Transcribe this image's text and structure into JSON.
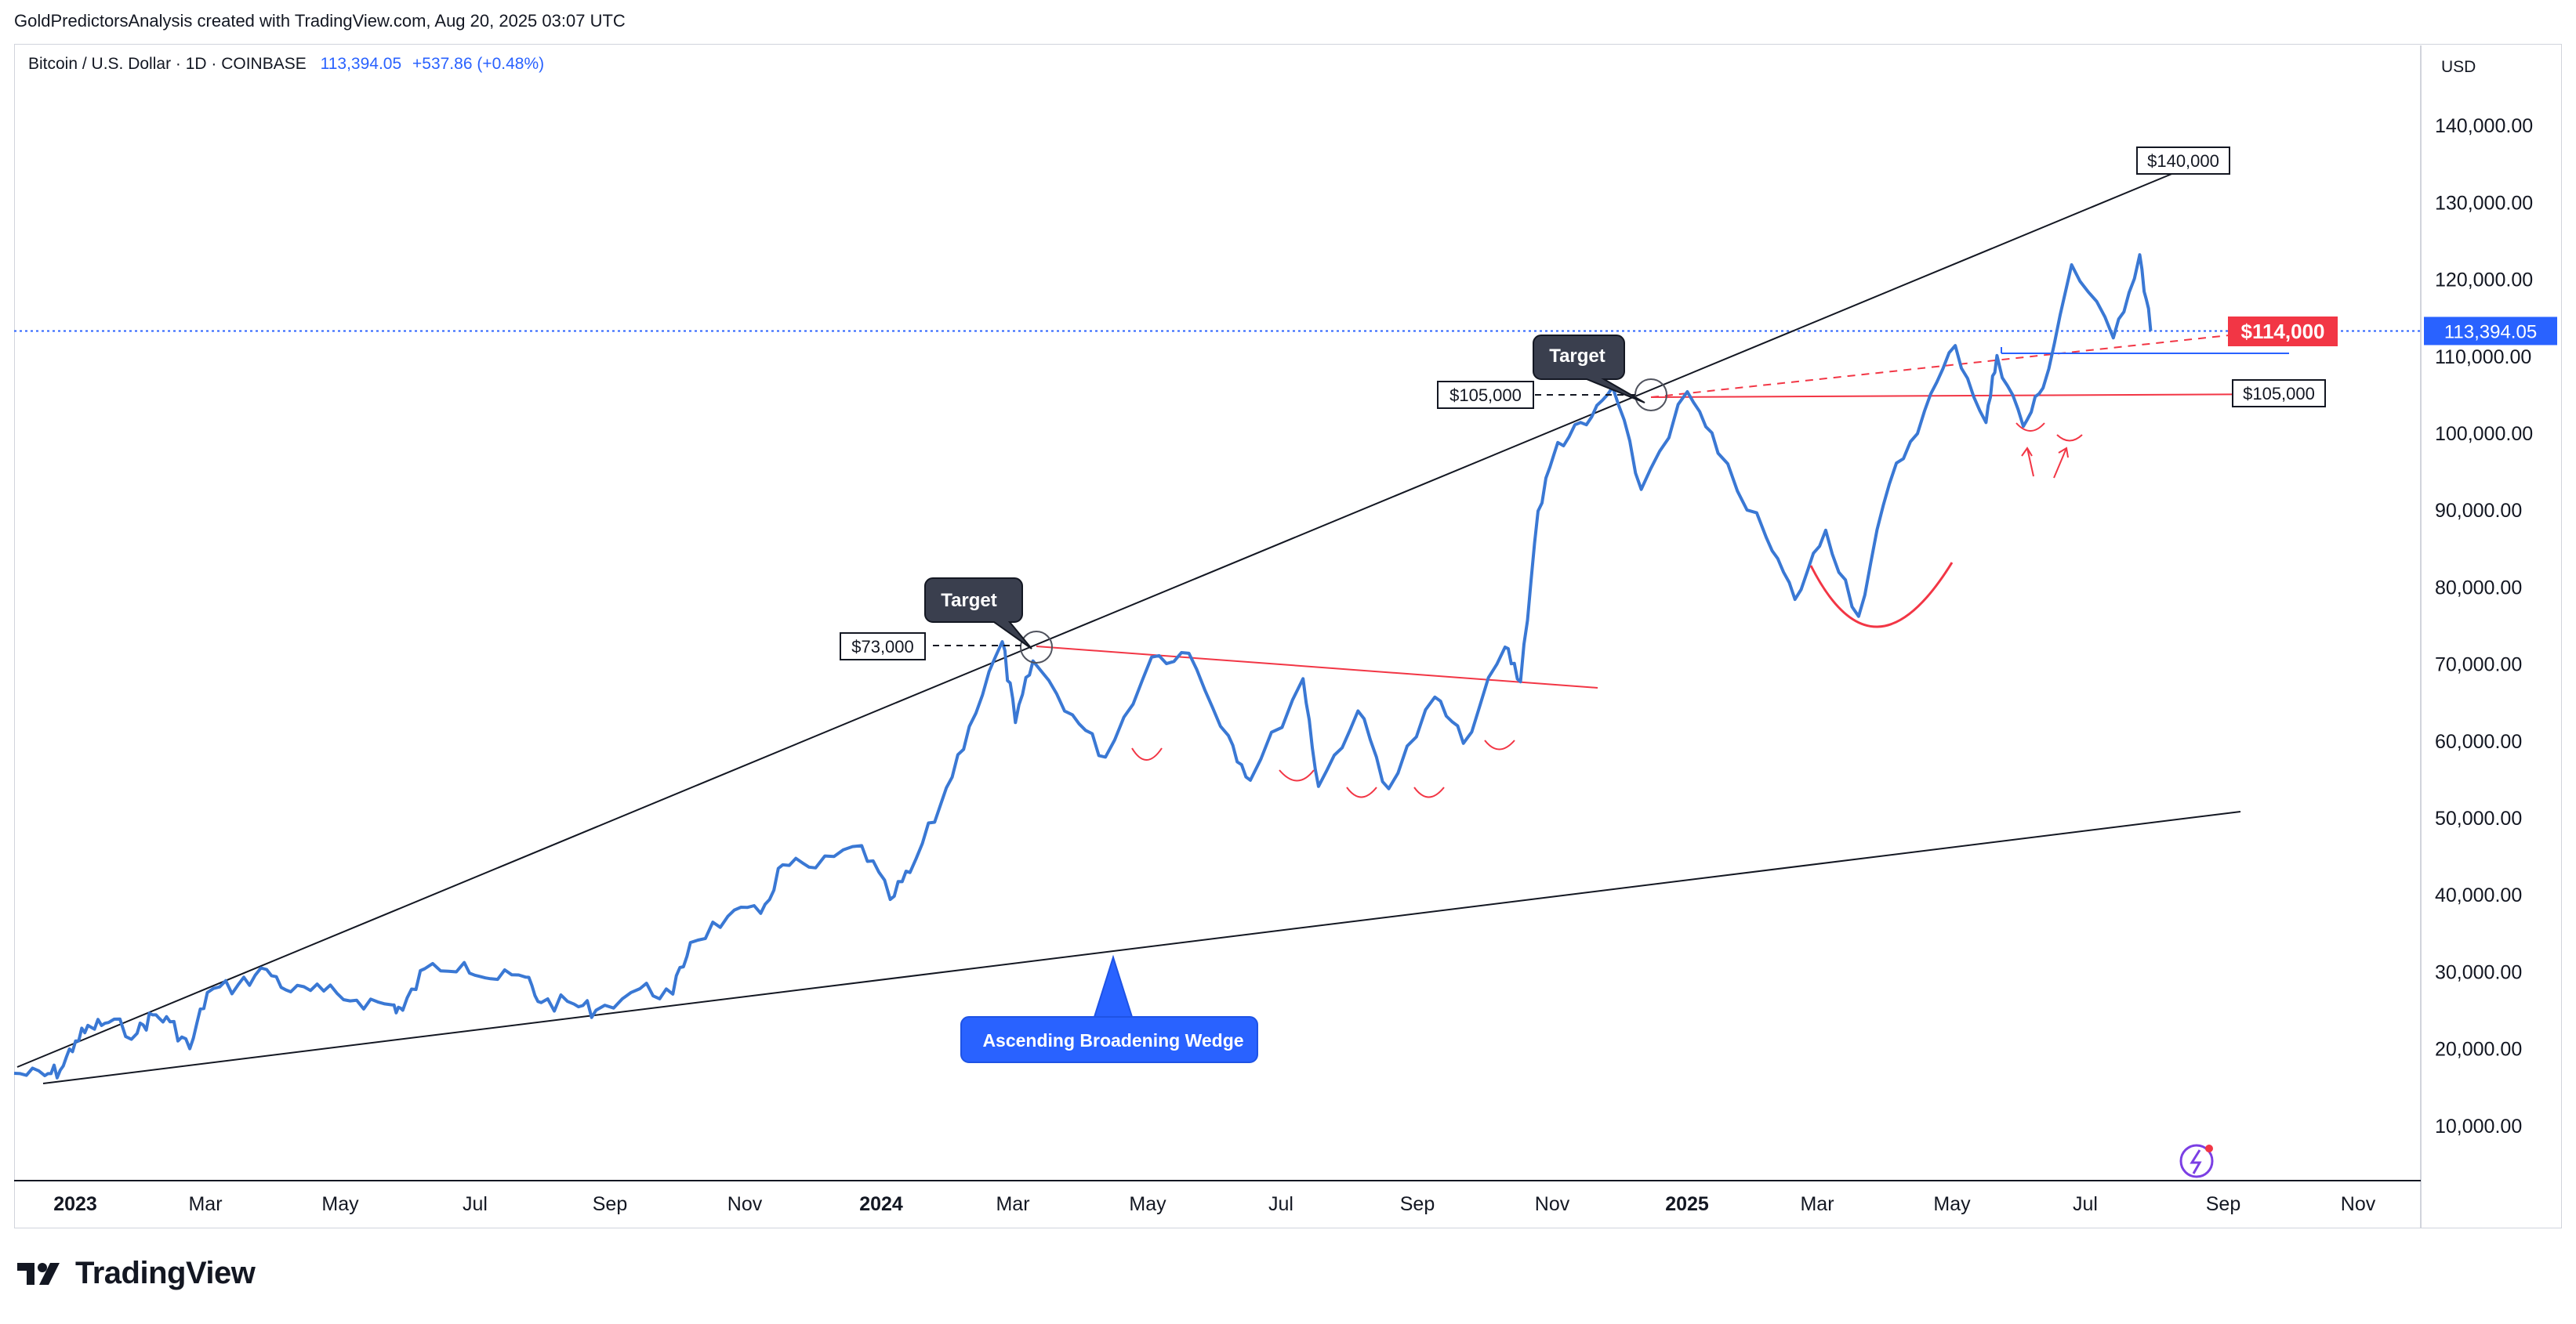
{
  "header": {
    "attribution": "GoldPredictorsAnalysis created with TradingView.com, Aug 20, 2025 03:07 UTC"
  },
  "legend": {
    "symbol": "Bitcoin / U.S. Dollar · 1D · COINBASE",
    "price": "113,394.05",
    "change": "+537.86 (+0.48%)"
  },
  "axis": {
    "currency": "USD",
    "y_ticks": [
      "140,000.00",
      "130,000.00",
      "120,000.00",
      "110,000.00",
      "100,000.00",
      "90,000.00",
      "80,000.00",
      "70,000.00",
      "60,000.00",
      "50,000.00",
      "40,000.00",
      "30,000.00",
      "20,000.00",
      "10,000.00"
    ],
    "x_ticks": [
      "2023",
      "Mar",
      "May",
      "Jul",
      "Sep",
      "Nov",
      "2024",
      "Mar",
      "May",
      "Jul",
      "Sep",
      "Nov",
      "2025",
      "Mar",
      "May",
      "Jul",
      "Sep",
      "Nov"
    ],
    "current_price_label": "113,394.05"
  },
  "annotations": {
    "target_1": "Target",
    "target_2": "Target",
    "price_73k": "$73,000",
    "price_105k_left": "$105,000",
    "price_105k_right": "$105,000",
    "price_140k": "$140,000",
    "price_114k": "$114,000",
    "wedge_label": "Ascending Broadening Wedge"
  },
  "footer": {
    "brand": "TradingView"
  },
  "colors": {
    "price_line": "#3a78d4",
    "resistance": "#f23645",
    "trendline": "#131722",
    "accent": "#2962ff"
  },
  "chart_data": {
    "type": "line",
    "title": "Bitcoin / U.S. Dollar · 1D · COINBASE",
    "xlabel": "",
    "ylabel": "USD",
    "ylim": [
      0,
      148000
    ],
    "x_range": [
      "2022-12-20",
      "2025-12-20"
    ],
    "series": [
      {
        "values": [
          [
            "2022-12-20",
            16900
          ],
          [
            "2023-01-03",
            16600
          ],
          [
            "2023-01-10",
            17300
          ],
          [
            "2023-01-17",
            21100
          ],
          [
            "2023-01-24",
            22900
          ],
          [
            "2023-02-01",
            23500
          ],
          [
            "2023-02-14",
            22100
          ],
          [
            "2023-02-21",
            24500
          ],
          [
            "2023-03-01",
            23600
          ],
          [
            "2023-03-10",
            20100
          ],
          [
            "2023-03-18",
            27400
          ],
          [
            "2023-04-01",
            28400
          ],
          [
            "2023-04-14",
            30400
          ],
          [
            "2023-04-25",
            27500
          ],
          [
            "2023-05-10",
            27600
          ],
          [
            "2023-05-25",
            26400
          ],
          [
            "2023-06-10",
            25800
          ],
          [
            "2023-06-15",
            25100
          ],
          [
            "2023-06-25",
            30500
          ],
          [
            "2023-07-13",
            31300
          ],
          [
            "2023-07-25",
            29200
          ],
          [
            "2023-08-10",
            29400
          ],
          [
            "2023-08-17",
            26100
          ],
          [
            "2023-09-01",
            25900
          ],
          [
            "2023-09-11",
            25100
          ],
          [
            "2023-10-01",
            27900
          ],
          [
            "2023-10-16",
            27200
          ],
          [
            "2023-10-24",
            33900
          ],
          [
            "2023-11-10",
            37300
          ],
          [
            "2023-11-25",
            37700
          ],
          [
            "2023-12-05",
            44000
          ],
          [
            "2023-12-20",
            43600
          ],
          [
            "2024-01-10",
            46500
          ],
          [
            "2024-01-23",
            39500
          ],
          [
            "2024-02-01",
            43000
          ],
          [
            "2024-02-15",
            51900
          ],
          [
            "2024-02-28",
            62000
          ],
          [
            "2024-03-14",
            73000
          ],
          [
            "2024-03-20",
            62500
          ],
          [
            "2024-03-28",
            70500
          ],
          [
            "2024-04-15",
            63500
          ],
          [
            "2024-04-30",
            58000
          ],
          [
            "2024-05-21",
            71000
          ],
          [
            "2024-06-07",
            71500
          ],
          [
            "2024-06-25",
            60800
          ],
          [
            "2024-07-05",
            55000
          ],
          [
            "2024-07-29",
            68200
          ],
          [
            "2024-08-05",
            54200
          ],
          [
            "2024-08-23",
            64000
          ],
          [
            "2024-09-06",
            53900
          ],
          [
            "2024-09-27",
            65800
          ],
          [
            "2024-10-10",
            59800
          ],
          [
            "2024-10-29",
            72300
          ],
          [
            "2024-11-05",
            67800
          ],
          [
            "2024-11-13",
            90000
          ],
          [
            "2024-11-22",
            98900
          ],
          [
            "2024-12-05",
            101200
          ],
          [
            "2024-12-17",
            106100
          ],
          [
            "2024-12-30",
            92800
          ],
          [
            "2025-01-20",
            105500
          ],
          [
            "2025-02-03",
            97500
          ],
          [
            "2025-02-25",
            86500
          ],
          [
            "2025-03-10",
            78500
          ],
          [
            "2025-03-24",
            87500
          ],
          [
            "2025-04-08",
            76300
          ],
          [
            "2025-04-22",
            93500
          ],
          [
            "2025-05-08",
            103000
          ],
          [
            "2025-05-22",
            111500
          ],
          [
            "2025-06-05",
            101500
          ],
          [
            "2025-06-10",
            110200
          ],
          [
            "2025-06-22",
            101000
          ],
          [
            "2025-07-01",
            106000
          ],
          [
            "2025-07-14",
            122000
          ],
          [
            "2025-08-02",
            112500
          ],
          [
            "2025-08-14",
            123300
          ],
          [
            "2025-08-19",
            113394
          ]
        ]
      }
    ],
    "current_price": 113394.05
  }
}
